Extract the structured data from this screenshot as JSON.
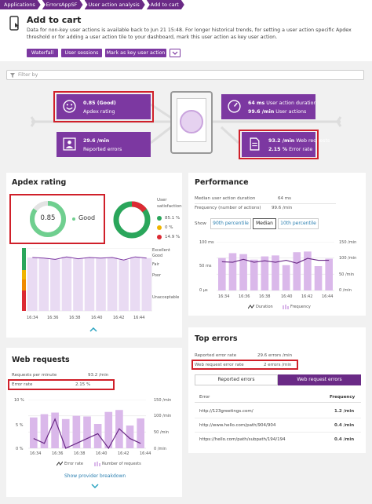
{
  "breadcrumb": [
    "Applications",
    "ErrorsAppSF",
    "User action analysis",
    "Add to cart"
  ],
  "header": {
    "title": "Add to cart",
    "description": "Data for non-key user actions is available back to Jun 21 15:48. For longer historical trends, for setting a user action specific Apdex threshold or for adding a user action tile to your dashboard, mark this user action as key user action."
  },
  "actions": {
    "waterfall": "Waterfall",
    "sessions": "User sessions",
    "keyaction": "Mark as key user action"
  },
  "filter": {
    "placeholder": "Filter by"
  },
  "flow": {
    "apdex_value": "0.85 (Good)",
    "apdex_label": "Apdex rating",
    "duration_value": "64 ms",
    "duration_label": "User action duration",
    "actions_value": "99.6 /min",
    "actions_label": "User actions",
    "errors_value": "29.6 /min",
    "errors_label": "Reported errors",
    "web_value": "93.2 /min",
    "web_label": "Web requests",
    "rate_value": "2.15 %",
    "rate_label": "Error rate"
  },
  "apdex": {
    "title": "Apdex rating",
    "score": "0.85",
    "rating": "Good",
    "satisfaction_label": "User satisfaction",
    "satisfied": "85.1 %",
    "tolerating": "0 %",
    "frustrated": "14.9 %",
    "bands": [
      "Excellent",
      "Good",
      "Fair",
      "Poor",
      "Unacceptable"
    ],
    "xticks": [
      "16:34",
      "16:36",
      "16:38",
      "16:40",
      "16:42",
      "16:44"
    ]
  },
  "performance": {
    "title": "Performance",
    "median_label": "Median user action duration",
    "median_value": "64 ms",
    "freq_label": "Frequency (number of actions)",
    "freq_value": "99.6 /min",
    "show_label": "Show",
    "pct90": "90th percentile",
    "median": "Median",
    "pct10": "10th percentile",
    "yleft": [
      "100 ms",
      "50 ms",
      "0 µs"
    ],
    "yright": [
      "150 /min",
      "100 /min",
      "50 /min",
      "0 /min"
    ],
    "xticks": [
      "16:34",
      "16:36",
      "16:38",
      "16:40",
      "16:42",
      "16:44"
    ],
    "legend_duration": "Duration",
    "legend_frequency": "Frequency"
  },
  "web": {
    "title": "Web requests",
    "rpm_label": "Requests per minute",
    "rpm_value": "93.2 /min",
    "err_label": "Error rate",
    "err_value": "2.15 %",
    "yleft": [
      "10 %",
      "5 %",
      "0 %"
    ],
    "yright": [
      "150 /min",
      "100 /min",
      "50 /min",
      "0 /min"
    ],
    "xticks": [
      "16:34",
      "16:36",
      "16:38",
      "16:40",
      "16:42",
      "16:44"
    ],
    "legend_err": "Error rate",
    "legend_num": "Number of requests",
    "provider": "Show provider breakdown"
  },
  "top": {
    "title": "Top errors",
    "reported_label": "Reported error rate",
    "reported_value": "29.6 errors /min",
    "web_label": "Web request error rate",
    "web_value": "2 errors /min",
    "tab_reported": "Reported errors",
    "tab_web": "Web request errors",
    "col_error": "Error",
    "col_freq": "Frequency",
    "rows": [
      {
        "url": "http://123greetings.com/",
        "freq": "1.2 /min"
      },
      {
        "url": "http://www.hello.com/path/904/904",
        "freq": "0.4 /min"
      },
      {
        "url": "https://hello.com/path/subpath/194/194",
        "freq": "0.4 /min"
      }
    ]
  },
  "colors": {
    "accent": "#7c38a1",
    "good": "#2aa65b",
    "fair": "#f0b400",
    "bad": "#dc2a33",
    "bar": "#dab8ea",
    "line": "#6a2a86"
  },
  "chart_data": [
    {
      "type": "bar",
      "title": "Apdex rating",
      "categories": [
        "16:34",
        "16:35",
        "16:36",
        "16:37",
        "16:38",
        "16:39",
        "16:40",
        "16:41",
        "16:42",
        "16:43",
        "16:44"
      ],
      "values": [
        0.85,
        0.84,
        0.82,
        0.86,
        0.83,
        0.85,
        0.84,
        0.85,
        0.81,
        0.86,
        0.84
      ]
    },
    {
      "type": "bar+line",
      "title": "Performance",
      "categories": [
        "16:34",
        "16:35",
        "16:36",
        "16:37",
        "16:38",
        "16:39",
        "16:40",
        "16:41",
        "16:42",
        "16:43",
        "16:44"
      ],
      "series": [
        {
          "name": "Duration",
          "unit": "ms",
          "values": [
            59,
            58,
            64,
            58,
            61,
            58,
            62,
            56,
            66,
            62,
            62
          ]
        },
        {
          "name": "Frequency",
          "unit": "/min",
          "values": [
            100,
            115,
            112,
            95,
            105,
            108,
            78,
            118,
            120,
            75,
            98
          ]
        }
      ]
    },
    {
      "type": "bar+line",
      "title": "Web requests",
      "categories": [
        "16:34",
        "16:35",
        "16:36",
        "16:37",
        "16:38",
        "16:39",
        "16:40",
        "16:41",
        "16:42",
        "16:43",
        "16:44"
      ],
      "series": [
        {
          "name": "Error rate",
          "unit": "%",
          "values": [
            2,
            1,
            6,
            0,
            1,
            2,
            3,
            0,
            4,
            2,
            1
          ]
        },
        {
          "name": "Number of requests",
          "unit": "/min",
          "values": [
            95,
            105,
            110,
            90,
            100,
            98,
            75,
            112,
            118,
            70,
            92
          ]
        }
      ]
    }
  ]
}
